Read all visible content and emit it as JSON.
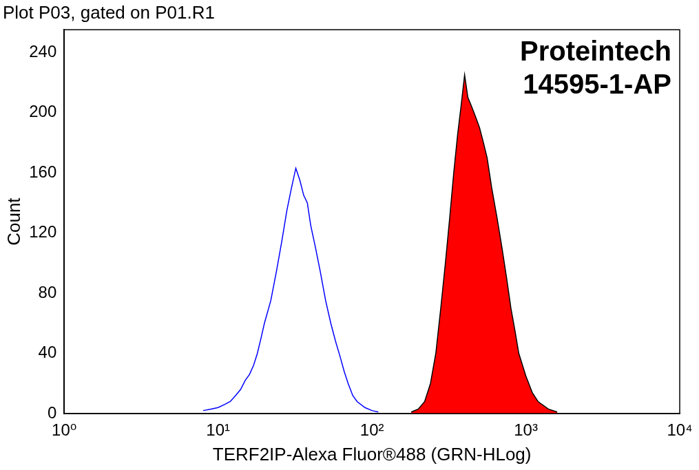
{
  "chart_data": {
    "type": "line",
    "title": "Plot P03, gated on P01.R1",
    "annotations": [
      "Proteintech",
      "14595-1-AP"
    ],
    "x_label": "TERF2IP-Alexa Fluor®488 (GRN-HLog)",
    "y_label": "Count",
    "log": "x",
    "grid": false,
    "xlim": [
      1,
      10000
    ],
    "xticks": [
      {
        "value": 1,
        "label": "10⁰"
      },
      {
        "value": 10,
        "label": "10¹"
      },
      {
        "value": 100,
        "label": "10²"
      },
      {
        "value": 1000,
        "label": "10³"
      },
      {
        "value": 10000,
        "label": "10⁴"
      }
    ],
    "ylim": [
      0,
      255
    ],
    "yticks": [
      0,
      40,
      80,
      120,
      160,
      200,
      240
    ],
    "series": [
      {
        "type": "line",
        "color": "#0000ff",
        "x": [
          8,
          9,
          10,
          11,
          12,
          13,
          14,
          15,
          16,
          17,
          18,
          19,
          20,
          22,
          24,
          26,
          28,
          30,
          32,
          34,
          36,
          38,
          40,
          43,
          46,
          50,
          54,
          58,
          62,
          66,
          70,
          75,
          80,
          90,
          100,
          110
        ],
        "values": [
          2,
          3,
          4,
          6,
          8,
          12,
          16,
          22,
          26,
          32,
          40,
          50,
          60,
          75,
          95,
          115,
          135,
          150,
          163,
          155,
          145,
          140,
          125,
          110,
          95,
          75,
          60,
          48,
          38,
          28,
          20,
          12,
          8,
          4,
          2,
          1
        ]
      },
      {
        "type": "area",
        "color": "#ff0000",
        "x": [
          180,
          200,
          220,
          240,
          260,
          280,
          300,
          320,
          340,
          360,
          380,
          400,
          420,
          440,
          460,
          480,
          500,
          530,
          560,
          600,
          650,
          700,
          750,
          800,
          850,
          900,
          1000,
          1100,
          1200,
          1400,
          1600
        ],
        "values": [
          1,
          3,
          8,
          20,
          40,
          70,
          100,
          130,
          160,
          185,
          205,
          225,
          210,
          205,
          200,
          195,
          190,
          180,
          170,
          150,
          130,
          110,
          90,
          70,
          55,
          40,
          25,
          14,
          8,
          3,
          1
        ]
      }
    ]
  }
}
